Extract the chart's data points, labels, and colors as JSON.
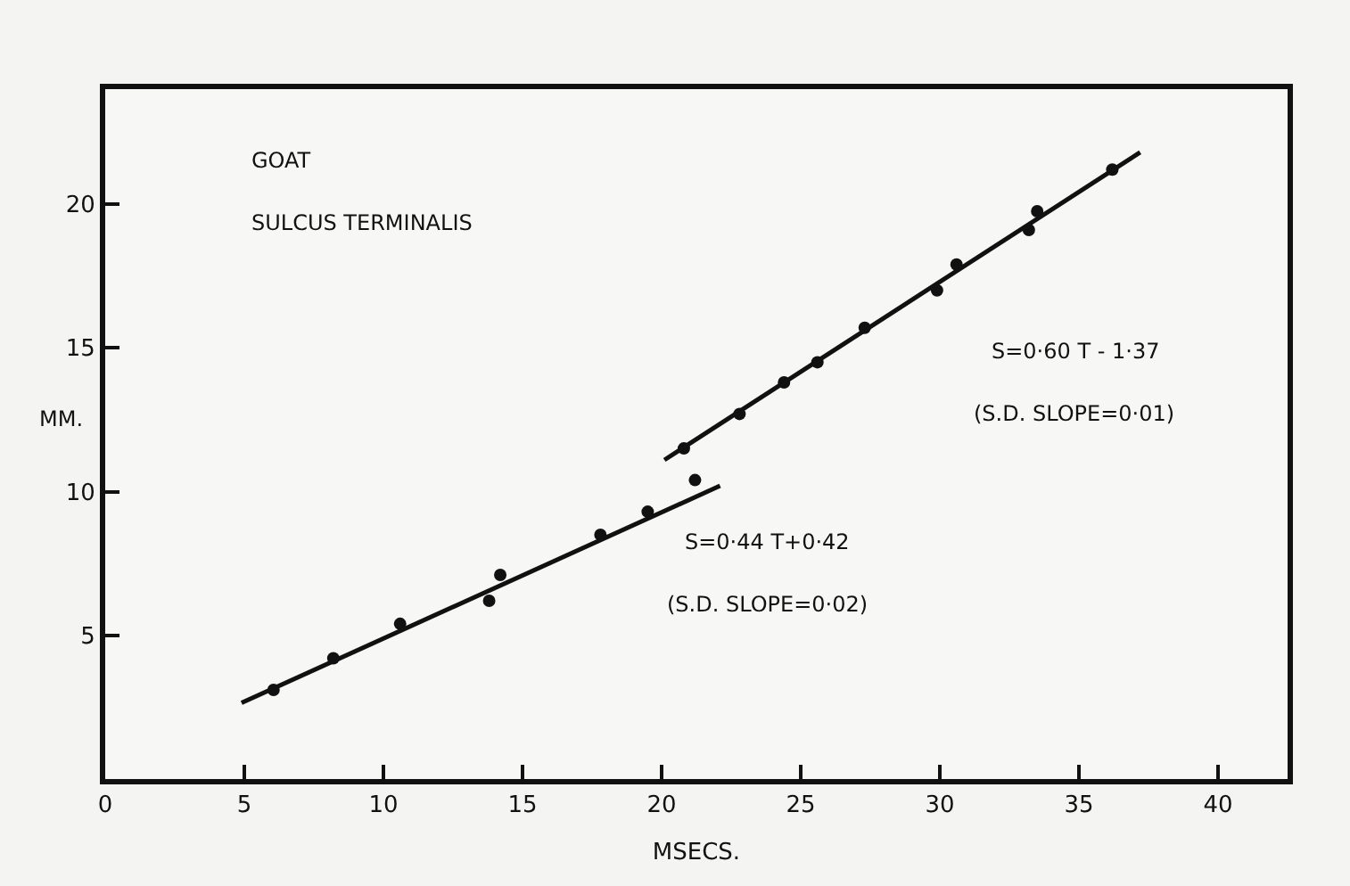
{
  "chart_data": {
    "type": "scatter",
    "xlabel": "MSECS.",
    "ylabel": "MM.",
    "annotations": [
      "GOAT",
      "SULCUS TERMINALIS",
      "S=0·60 T - 1·37",
      "(S.D. SLOPE=0·01)",
      "S=0·44 T+0·42",
      "(S.D. SLOPE=0·02)"
    ],
    "series": [
      {
        "color": "#111111",
        "x": [
          6.05,
          8.2,
          10.6,
          13.8,
          14.2,
          17.8,
          19.5,
          21.2
        ],
        "values": [
          3.1,
          4.2,
          5.4,
          6.2,
          7.1,
          8.5,
          9.3,
          10.4
        ]
      },
      {
        "color": "#111111",
        "x": [
          20.8,
          22.8,
          24.4,
          25.6,
          27.3,
          29.9,
          30.6,
          33.2,
          33.5,
          36.2
        ],
        "values": [
          11.5,
          12.7,
          13.8,
          14.5,
          15.7,
          17.0,
          17.9,
          19.1,
          19.75,
          21.2
        ]
      },
      {
        "type": "line",
        "marker": "none",
        "color": "#111111",
        "x": [
          4.9,
          22.1
        ],
        "values": [
          2.65,
          10.2
        ]
      },
      {
        "type": "line",
        "marker": "none",
        "color": "#111111",
        "x": [
          20.1,
          37.2
        ],
        "values": [
          11.1,
          21.8
        ]
      }
    ],
    "marker": "circle",
    "line_style": "solid",
    "xlim": [
      0,
      42.5
    ],
    "ylim": [
      0,
      24
    ],
    "xticks": [
      0,
      5,
      10,
      15,
      20,
      25,
      30,
      35,
      40
    ],
    "yticks": [
      5,
      10,
      15,
      20
    ],
    "grid": false
  }
}
